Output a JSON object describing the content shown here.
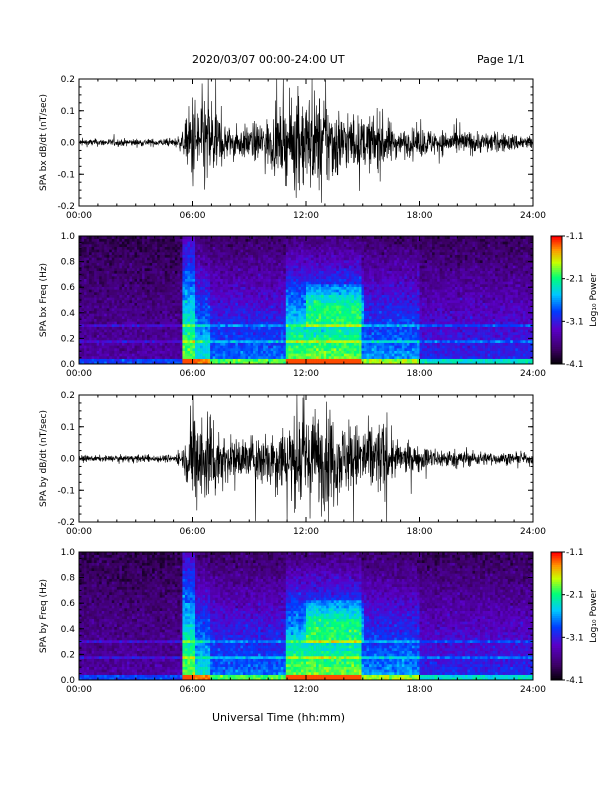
{
  "header": {
    "title": "2020/03/07  00:00-24:00 UT",
    "page": "Page 1/1"
  },
  "xaxis": {
    "label": "Universal Time (hh:mm)"
  },
  "colors": {
    "trace": "#000000",
    "spectrogram_background": "#000000"
  },
  "chart_data": [
    {
      "type": "line",
      "title": "",
      "ylabel": "SPA bx dB/dt (nT/sec)",
      "xlabel": "",
      "xlim": [
        0,
        24
      ],
      "ylim": [
        -0.2,
        0.2
      ],
      "x_ticks": [
        "00:00",
        "06:00",
        "12:00",
        "18:00",
        "24:00"
      ],
      "y_ticks": [
        "-0.2",
        "-0.1",
        "0.0",
        "0.1",
        "0.2"
      ],
      "series": [
        {
          "x": [
            0,
            1,
            2,
            3,
            4,
            5,
            5.5,
            6,
            6.5,
            7,
            7.5,
            8,
            9,
            10,
            11,
            11.5,
            12,
            12.5,
            13,
            13.5,
            14,
            15,
            16,
            16.5,
            17,
            18,
            19,
            20,
            21,
            22,
            23,
            24
          ],
          "amplitude": [
            0.015,
            0.015,
            0.015,
            0.015,
            0.015,
            0.015,
            0.04,
            0.2,
            0.2,
            0.2,
            0.1,
            0.06,
            0.07,
            0.1,
            0.15,
            0.2,
            0.2,
            0.2,
            0.2,
            0.16,
            0.12,
            0.1,
            0.12,
            0.08,
            0.05,
            0.06,
            0.05,
            0.05,
            0.045,
            0.04,
            0.035,
            0.03
          ]
        }
      ]
    },
    {
      "type": "heatmap",
      "title": "",
      "ylabel": "SPA bx Freq (Hz)",
      "xlabel": "",
      "xlim": [
        0,
        24
      ],
      "ylim": [
        0,
        1
      ],
      "x_ticks": [
        "00:00",
        "06:00",
        "12:00",
        "18:00",
        "24:00"
      ],
      "y_ticks": [
        "0.0",
        "0.2",
        "0.4",
        "0.6",
        "0.8",
        "1.0"
      ],
      "colorbar": {
        "label": "Log₁₀ Power",
        "min": -4.1,
        "max": -1.1,
        "ticks": [
          "-1.1",
          "-2.1",
          "-3.1",
          "-4.1"
        ]
      }
    },
    {
      "type": "line",
      "title": "",
      "ylabel": "SPA by dB/dt (nT/sec)",
      "xlabel": "",
      "xlim": [
        0,
        24
      ],
      "ylim": [
        -0.2,
        0.2
      ],
      "x_ticks": [
        "00:00",
        "06:00",
        "12:00",
        "18:00",
        "24:00"
      ],
      "y_ticks": [
        "-0.2",
        "-0.1",
        "0.0",
        "0.1",
        "0.2"
      ],
      "series": [
        {
          "x": [
            0,
            1,
            2,
            3,
            4,
            5,
            5.5,
            6,
            6.5,
            7,
            7.5,
            8,
            9,
            10,
            11,
            11.5,
            12,
            12.5,
            13,
            13.5,
            14,
            15,
            16,
            16.5,
            17,
            18,
            19,
            20,
            21,
            22,
            23,
            24
          ],
          "amplitude": [
            0.012,
            0.012,
            0.012,
            0.015,
            0.015,
            0.015,
            0.04,
            0.2,
            0.2,
            0.2,
            0.12,
            0.08,
            0.09,
            0.12,
            0.16,
            0.2,
            0.2,
            0.2,
            0.2,
            0.18,
            0.14,
            0.14,
            0.16,
            0.1,
            0.06,
            0.05,
            0.04,
            0.035,
            0.03,
            0.025,
            0.022,
            0.02
          ]
        }
      ]
    },
    {
      "type": "heatmap",
      "title": "",
      "ylabel": "SPA by Freq (Hz)",
      "xlabel": "",
      "xlim": [
        0,
        24
      ],
      "ylim": [
        0,
        1
      ],
      "x_ticks": [
        "00:00",
        "06:00",
        "12:00",
        "18:00",
        "24:00"
      ],
      "y_ticks": [
        "0.0",
        "0.2",
        "0.4",
        "0.6",
        "0.8",
        "1.0"
      ],
      "colorbar": {
        "label": "Log₁₀ Power",
        "min": -4.1,
        "max": -1.1,
        "ticks": [
          "-1.1",
          "-2.1",
          "-3.1",
          "-4.1"
        ]
      }
    }
  ]
}
